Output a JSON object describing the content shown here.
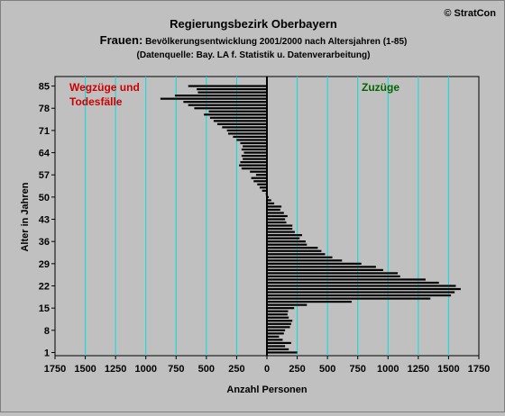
{
  "copyright": "© StratCon",
  "title": "Regierungsbezirk Oberbayern",
  "subtitle_lead": "Frauen:",
  "subtitle_rest": " Bevölkerungsentwicklung  2001/2000 nach Altersjahren (1-85)",
  "source": "(Datenquelle: Bay. LA f. Statistik u. Datenverarbeitung)",
  "colors": {
    "background": "#c0c0c0",
    "plot_background": "#c0c0c0",
    "gridline": "#00e0e0",
    "bars": "#000000",
    "loss_label": "#cc0000",
    "gain_label": "#006600"
  },
  "chart_data": {
    "type": "bar",
    "orientation": "horizontal",
    "title": "Regierungsbezirk Oberbayern",
    "xlabel": "Anzahl Personen",
    "ylabel": "Alter in Jahren",
    "xlim": [
      -1750,
      1750
    ],
    "ylim": [
      0,
      88
    ],
    "x_ticks": [
      -1750,
      -1500,
      -1250,
      -1000,
      -750,
      -500,
      -250,
      0,
      250,
      500,
      750,
      1000,
      1250,
      1500,
      1750
    ],
    "x_tick_labels": [
      "1750",
      "1500",
      "1250",
      "1000",
      "750",
      "500",
      "250",
      "0",
      "250",
      "500",
      "750",
      "1000",
      "1250",
      "1500",
      "1750"
    ],
    "y_ticks": [
      1,
      8,
      15,
      22,
      29,
      36,
      43,
      50,
      57,
      64,
      71,
      78,
      85
    ],
    "y_tick_labels": [
      "1",
      "8",
      "15",
      "22",
      "29",
      "36",
      "43",
      "50",
      "57",
      "64",
      "71",
      "78",
      "85"
    ],
    "vertical_grid": true,
    "annotations": [
      {
        "text": "Wegzüge und",
        "side": "left"
      },
      {
        "text": "Todesfälle",
        "side": "left"
      },
      {
        "text": "Zuzüge",
        "side": "right"
      }
    ],
    "ages": [
      1,
      2,
      3,
      4,
      5,
      6,
      7,
      8,
      9,
      10,
      11,
      12,
      13,
      14,
      15,
      16,
      17,
      18,
      19,
      20,
      21,
      22,
      23,
      24,
      25,
      26,
      27,
      28,
      29,
      30,
      31,
      32,
      33,
      34,
      35,
      36,
      37,
      38,
      39,
      40,
      41,
      42,
      43,
      44,
      45,
      46,
      47,
      48,
      49,
      50,
      51,
      52,
      53,
      54,
      55,
      56,
      57,
      58,
      59,
      60,
      61,
      62,
      63,
      64,
      65,
      66,
      67,
      68,
      69,
      70,
      71,
      72,
      73,
      74,
      75,
      76,
      77,
      78,
      79,
      80,
      81,
      82,
      83,
      84,
      85
    ],
    "values": [
      250,
      180,
      150,
      200,
      130,
      100,
      140,
      150,
      190,
      200,
      210,
      180,
      170,
      175,
      225,
      330,
      700,
      1350,
      1520,
      1550,
      1600,
      1560,
      1420,
      1310,
      1100,
      1080,
      960,
      900,
      780,
      620,
      540,
      480,
      450,
      420,
      330,
      320,
      270,
      290,
      230,
      210,
      210,
      160,
      150,
      170,
      140,
      110,
      120,
      60,
      35,
      15,
      -10,
      -40,
      -60,
      -80,
      -110,
      -130,
      -90,
      -140,
      -210,
      -230,
      -220,
      -200,
      -210,
      -190,
      -210,
      -200,
      -220,
      -250,
      -280,
      -320,
      -330,
      -370,
      -410,
      -440,
      -470,
      -520,
      -480,
      -600,
      -650,
      -690,
      -880,
      -760,
      -570,
      -580,
      -650
    ],
    "series": [
      {
        "values_ref": "values"
      }
    ]
  }
}
